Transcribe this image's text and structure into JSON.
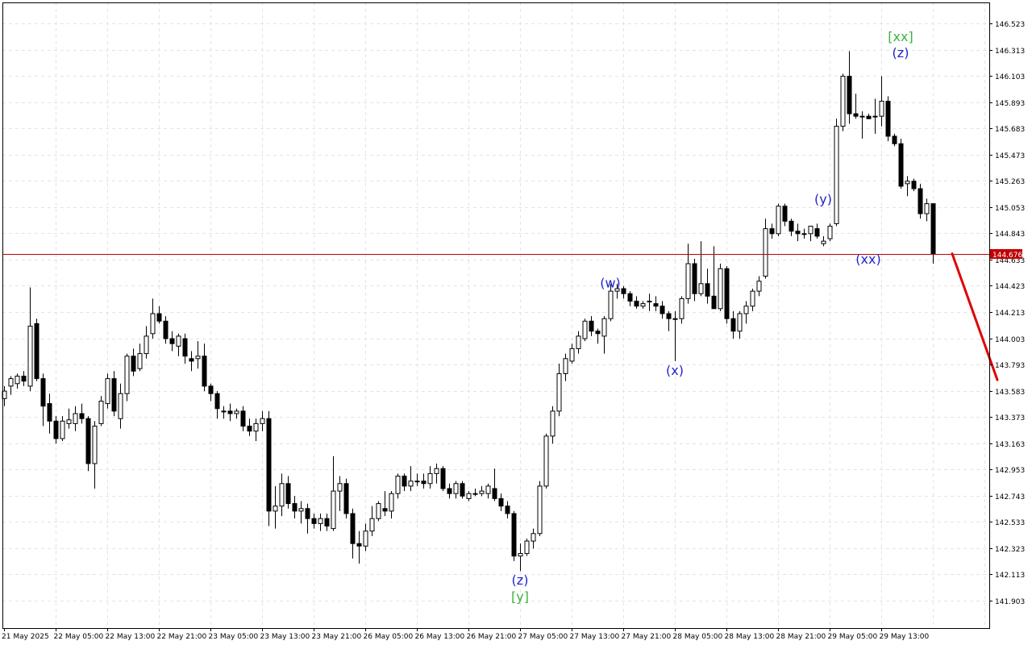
{
  "chart_data": {
    "type": "candlestick",
    "current_price": {
      "value": 144.676,
      "label": "144.676",
      "line_color": "#c00000",
      "badge_color": "#c00000"
    },
    "y_ticks": [
      146.523,
      146.313,
      146.103,
      145.893,
      145.683,
      145.473,
      145.263,
      145.053,
      144.843,
      144.633,
      144.423,
      144.213,
      144.003,
      143.793,
      143.583,
      143.373,
      143.163,
      142.953,
      142.743,
      142.533,
      142.323,
      142.113,
      141.903
    ],
    "y_tick_labels": [
      "146.523",
      "146.313",
      "146.103",
      "145.893",
      "145.683",
      "145.473",
      "145.263",
      "145.053",
      "144.843",
      "144.633",
      "144.423",
      "144.213",
      "144.003",
      "143.793",
      "143.583",
      "143.373",
      "143.163",
      "142.953",
      "142.743",
      "142.533",
      "142.323",
      "142.113",
      "141.903"
    ],
    "x_labels": [
      "21 May 2025",
      "22 May 05:00",
      "22 May 13:00",
      "22 May 21:00",
      "23 May 05:00",
      "23 May 13:00",
      "23 May 21:00",
      "26 May 05:00",
      "26 May 13:00",
      "26 May 21:00",
      "27 May 05:00",
      "27 May 13:00",
      "27 May 21:00",
      "28 May 05:00",
      "28 May 13:00",
      "28 May 21:00",
      "29 May 05:00",
      "29 May 13:00"
    ],
    "bars_per_label": 8,
    "candles": [
      {
        "o": 143.52,
        "h": 143.62,
        "l": 143.46,
        "c": 143.58
      },
      {
        "o": 143.62,
        "h": 143.7,
        "l": 143.55,
        "c": 143.68
      },
      {
        "o": 143.64,
        "h": 143.72,
        "l": 143.6,
        "c": 143.7
      },
      {
        "o": 143.7,
        "h": 143.74,
        "l": 143.62,
        "c": 143.66
      },
      {
        "o": 143.62,
        "h": 144.41,
        "l": 143.58,
        "c": 144.1
      },
      {
        "o": 144.12,
        "h": 144.16,
        "l": 143.66,
        "c": 143.68
      },
      {
        "o": 143.68,
        "h": 143.72,
        "l": 143.3,
        "c": 143.46
      },
      {
        "o": 143.48,
        "h": 143.56,
        "l": 143.24,
        "c": 143.34
      },
      {
        "o": 143.34,
        "h": 143.38,
        "l": 143.16,
        "c": 143.2
      },
      {
        "o": 143.2,
        "h": 143.38,
        "l": 143.18,
        "c": 143.34
      },
      {
        "o": 143.32,
        "h": 143.44,
        "l": 143.28,
        "c": 143.35
      },
      {
        "o": 143.32,
        "h": 143.46,
        "l": 143.26,
        "c": 143.4
      },
      {
        "o": 143.4,
        "h": 143.48,
        "l": 143.32,
        "c": 143.36
      },
      {
        "o": 143.36,
        "h": 143.38,
        "l": 142.94,
        "c": 143.0
      },
      {
        "o": 143.0,
        "h": 143.34,
        "l": 142.8,
        "c": 143.3
      },
      {
        "o": 143.32,
        "h": 143.54,
        "l": 143.3,
        "c": 143.5
      },
      {
        "o": 143.48,
        "h": 143.72,
        "l": 143.44,
        "c": 143.68
      },
      {
        "o": 143.68,
        "h": 143.74,
        "l": 143.38,
        "c": 143.42
      },
      {
        "o": 143.36,
        "h": 143.64,
        "l": 143.28,
        "c": 143.56
      },
      {
        "o": 143.56,
        "h": 143.88,
        "l": 143.5,
        "c": 143.86
      },
      {
        "o": 143.86,
        "h": 143.92,
        "l": 143.7,
        "c": 143.74
      },
      {
        "o": 143.76,
        "h": 143.96,
        "l": 143.74,
        "c": 143.88
      },
      {
        "o": 143.88,
        "h": 144.1,
        "l": 143.84,
        "c": 144.02
      },
      {
        "o": 144.04,
        "h": 144.32,
        "l": 144.0,
        "c": 144.2
      },
      {
        "o": 144.2,
        "h": 144.26,
        "l": 144.12,
        "c": 144.14
      },
      {
        "o": 144.14,
        "h": 144.18,
        "l": 143.96,
        "c": 144.0
      },
      {
        "o": 144.0,
        "h": 144.06,
        "l": 143.9,
        "c": 143.96
      },
      {
        "o": 143.94,
        "h": 144.04,
        "l": 143.86,
        "c": 144.02
      },
      {
        "o": 144.0,
        "h": 144.04,
        "l": 143.8,
        "c": 143.86
      },
      {
        "o": 143.84,
        "h": 143.9,
        "l": 143.74,
        "c": 143.82
      },
      {
        "o": 143.84,
        "h": 143.98,
        "l": 143.76,
        "c": 143.86
      },
      {
        "o": 143.86,
        "h": 143.96,
        "l": 143.58,
        "c": 143.62
      },
      {
        "o": 143.62,
        "h": 143.64,
        "l": 143.5,
        "c": 143.56
      },
      {
        "o": 143.56,
        "h": 143.58,
        "l": 143.36,
        "c": 143.44
      },
      {
        "o": 143.42,
        "h": 143.46,
        "l": 143.36,
        "c": 143.42
      },
      {
        "o": 143.42,
        "h": 143.48,
        "l": 143.34,
        "c": 143.4
      },
      {
        "o": 143.4,
        "h": 143.44,
        "l": 143.36,
        "c": 143.42
      },
      {
        "o": 143.42,
        "h": 143.46,
        "l": 143.26,
        "c": 143.3
      },
      {
        "o": 143.3,
        "h": 143.36,
        "l": 143.22,
        "c": 143.26
      },
      {
        "o": 143.26,
        "h": 143.36,
        "l": 143.18,
        "c": 143.32
      },
      {
        "o": 143.32,
        "h": 143.42,
        "l": 143.26,
        "c": 143.36
      },
      {
        "o": 143.36,
        "h": 143.42,
        "l": 142.5,
        "c": 142.62
      },
      {
        "o": 142.62,
        "h": 142.82,
        "l": 142.48,
        "c": 142.66
      },
      {
        "o": 142.66,
        "h": 142.92,
        "l": 142.58,
        "c": 142.84
      },
      {
        "o": 142.84,
        "h": 142.9,
        "l": 142.64,
        "c": 142.68
      },
      {
        "o": 142.68,
        "h": 142.74,
        "l": 142.56,
        "c": 142.62
      },
      {
        "o": 142.62,
        "h": 142.7,
        "l": 142.52,
        "c": 142.64
      },
      {
        "o": 142.64,
        "h": 142.68,
        "l": 142.44,
        "c": 142.56
      },
      {
        "o": 142.56,
        "h": 142.6,
        "l": 142.48,
        "c": 142.52
      },
      {
        "o": 142.52,
        "h": 142.6,
        "l": 142.46,
        "c": 142.56
      },
      {
        "o": 142.56,
        "h": 142.6,
        "l": 142.46,
        "c": 142.5
      },
      {
        "o": 142.48,
        "h": 143.06,
        "l": 142.46,
        "c": 142.78
      },
      {
        "o": 142.78,
        "h": 142.9,
        "l": 142.62,
        "c": 142.84
      },
      {
        "o": 142.84,
        "h": 142.88,
        "l": 142.56,
        "c": 142.6
      },
      {
        "o": 142.6,
        "h": 142.64,
        "l": 142.24,
        "c": 142.36
      },
      {
        "o": 142.36,
        "h": 142.46,
        "l": 142.2,
        "c": 142.34
      },
      {
        "o": 142.34,
        "h": 142.52,
        "l": 142.3,
        "c": 142.46
      },
      {
        "o": 142.46,
        "h": 142.66,
        "l": 142.42,
        "c": 142.56
      },
      {
        "o": 142.56,
        "h": 142.7,
        "l": 142.54,
        "c": 142.68
      },
      {
        "o": 142.64,
        "h": 142.78,
        "l": 142.58,
        "c": 142.62
      },
      {
        "o": 142.62,
        "h": 142.78,
        "l": 142.56,
        "c": 142.76
      },
      {
        "o": 142.76,
        "h": 142.92,
        "l": 142.72,
        "c": 142.9
      },
      {
        "o": 142.9,
        "h": 142.92,
        "l": 142.78,
        "c": 142.82
      },
      {
        "o": 142.82,
        "h": 142.98,
        "l": 142.78,
        "c": 142.86
      },
      {
        "o": 142.86,
        "h": 142.92,
        "l": 142.82,
        "c": 142.86
      },
      {
        "o": 142.86,
        "h": 142.92,
        "l": 142.8,
        "c": 142.84
      },
      {
        "o": 142.84,
        "h": 142.98,
        "l": 142.8,
        "c": 142.92
      },
      {
        "o": 142.92,
        "h": 143.0,
        "l": 142.84,
        "c": 142.96
      },
      {
        "o": 142.96,
        "h": 142.98,
        "l": 142.78,
        "c": 142.8
      },
      {
        "o": 142.8,
        "h": 142.84,
        "l": 142.72,
        "c": 142.76
      },
      {
        "o": 142.76,
        "h": 142.86,
        "l": 142.72,
        "c": 142.84
      },
      {
        "o": 142.84,
        "h": 142.86,
        "l": 142.72,
        "c": 142.74
      },
      {
        "o": 142.72,
        "h": 142.78,
        "l": 142.7,
        "c": 142.76
      },
      {
        "o": 142.76,
        "h": 142.8,
        "l": 142.74,
        "c": 142.76
      },
      {
        "o": 142.76,
        "h": 142.82,
        "l": 142.74,
        "c": 142.78
      },
      {
        "o": 142.76,
        "h": 142.84,
        "l": 142.72,
        "c": 142.82
      },
      {
        "o": 142.8,
        "h": 142.96,
        "l": 142.7,
        "c": 142.72
      },
      {
        "o": 142.72,
        "h": 142.76,
        "l": 142.62,
        "c": 142.66
      },
      {
        "o": 142.66,
        "h": 142.7,
        "l": 142.56,
        "c": 142.6
      },
      {
        "o": 142.6,
        "h": 142.62,
        "l": 142.22,
        "c": 142.26
      },
      {
        "o": 142.26,
        "h": 142.36,
        "l": 142.14,
        "c": 142.28
      },
      {
        "o": 142.28,
        "h": 142.4,
        "l": 142.26,
        "c": 142.38
      },
      {
        "o": 142.38,
        "h": 142.48,
        "l": 142.32,
        "c": 142.44
      },
      {
        "o": 142.44,
        "h": 142.86,
        "l": 142.42,
        "c": 142.82
      },
      {
        "o": 142.82,
        "h": 143.24,
        "l": 142.8,
        "c": 143.22
      },
      {
        "o": 143.22,
        "h": 143.46,
        "l": 143.16,
        "c": 143.42
      },
      {
        "o": 143.42,
        "h": 143.8,
        "l": 143.38,
        "c": 143.72
      },
      {
        "o": 143.72,
        "h": 143.88,
        "l": 143.66,
        "c": 143.84
      },
      {
        "o": 143.82,
        "h": 143.96,
        "l": 143.8,
        "c": 143.92
      },
      {
        "o": 143.92,
        "h": 144.06,
        "l": 143.88,
        "c": 144.02
      },
      {
        "o": 144.0,
        "h": 144.16,
        "l": 143.98,
        "c": 144.14
      },
      {
        "o": 144.14,
        "h": 144.18,
        "l": 144.02,
        "c": 144.06
      },
      {
        "o": 144.06,
        "h": 144.08,
        "l": 143.96,
        "c": 144.04
      },
      {
        "o": 144.02,
        "h": 144.18,
        "l": 143.88,
        "c": 144.16
      },
      {
        "o": 144.16,
        "h": 144.44,
        "l": 144.14,
        "c": 144.38
      },
      {
        "o": 144.38,
        "h": 144.44,
        "l": 144.32,
        "c": 144.4
      },
      {
        "o": 144.4,
        "h": 144.42,
        "l": 144.32,
        "c": 144.36
      },
      {
        "o": 144.36,
        "h": 144.38,
        "l": 144.26,
        "c": 144.3
      },
      {
        "o": 144.3,
        "h": 144.34,
        "l": 144.24,
        "c": 144.26
      },
      {
        "o": 144.26,
        "h": 144.3,
        "l": 144.24,
        "c": 144.28
      },
      {
        "o": 144.3,
        "h": 144.36,
        "l": 144.22,
        "c": 144.3
      },
      {
        "o": 144.28,
        "h": 144.34,
        "l": 144.22,
        "c": 144.26
      },
      {
        "o": 144.26,
        "h": 144.3,
        "l": 144.16,
        "c": 144.2
      },
      {
        "o": 144.2,
        "h": 144.22,
        "l": 144.06,
        "c": 144.16
      },
      {
        "o": 144.16,
        "h": 144.22,
        "l": 143.82,
        "c": 144.16
      },
      {
        "o": 144.16,
        "h": 144.34,
        "l": 144.12,
        "c": 144.32
      },
      {
        "o": 144.32,
        "h": 144.76,
        "l": 144.28,
        "c": 144.6
      },
      {
        "o": 144.6,
        "h": 144.64,
        "l": 144.3,
        "c": 144.36
      },
      {
        "o": 144.36,
        "h": 144.78,
        "l": 144.34,
        "c": 144.44
      },
      {
        "o": 144.44,
        "h": 144.56,
        "l": 144.28,
        "c": 144.34
      },
      {
        "o": 144.34,
        "h": 144.74,
        "l": 144.24,
        "c": 144.24
      },
      {
        "o": 144.24,
        "h": 144.6,
        "l": 144.22,
        "c": 144.56
      },
      {
        "o": 144.56,
        "h": 144.58,
        "l": 144.12,
        "c": 144.16
      },
      {
        "o": 144.16,
        "h": 144.22,
        "l": 144.0,
        "c": 144.06
      },
      {
        "o": 144.06,
        "h": 144.22,
        "l": 144.0,
        "c": 144.2
      },
      {
        "o": 144.2,
        "h": 144.3,
        "l": 144.12,
        "c": 144.26
      },
      {
        "o": 144.26,
        "h": 144.4,
        "l": 144.22,
        "c": 144.38
      },
      {
        "o": 144.38,
        "h": 144.5,
        "l": 144.34,
        "c": 144.46
      },
      {
        "o": 144.5,
        "h": 144.96,
        "l": 144.48,
        "c": 144.88
      },
      {
        "o": 144.88,
        "h": 144.92,
        "l": 144.8,
        "c": 144.84
      },
      {
        "o": 144.84,
        "h": 145.08,
        "l": 144.82,
        "c": 145.06
      },
      {
        "o": 145.06,
        "h": 145.08,
        "l": 144.9,
        "c": 144.94
      },
      {
        "o": 144.94,
        "h": 144.96,
        "l": 144.82,
        "c": 144.86
      },
      {
        "o": 144.86,
        "h": 144.92,
        "l": 144.78,
        "c": 144.84
      },
      {
        "o": 144.84,
        "h": 144.88,
        "l": 144.8,
        "c": 144.84
      },
      {
        "o": 144.84,
        "h": 144.9,
        "l": 144.78,
        "c": 144.9
      },
      {
        "o": 144.88,
        "h": 144.92,
        "l": 144.8,
        "c": 144.82
      },
      {
        "o": 144.76,
        "h": 144.82,
        "l": 144.74,
        "c": 144.78
      },
      {
        "o": 144.8,
        "h": 144.92,
        "l": 144.78,
        "c": 144.9
      },
      {
        "o": 144.92,
        "h": 145.76,
        "l": 144.9,
        "c": 145.7
      },
      {
        "o": 145.7,
        "h": 146.12,
        "l": 145.66,
        "c": 146.1
      },
      {
        "o": 146.1,
        "h": 146.3,
        "l": 145.72,
        "c": 145.8
      },
      {
        "o": 145.8,
        "h": 145.96,
        "l": 145.76,
        "c": 145.78
      },
      {
        "o": 145.78,
        "h": 145.82,
        "l": 145.6,
        "c": 145.78
      },
      {
        "o": 145.78,
        "h": 145.8,
        "l": 145.76,
        "c": 145.76
      },
      {
        "o": 145.78,
        "h": 145.92,
        "l": 145.64,
        "c": 145.78
      },
      {
        "o": 145.78,
        "h": 146.1,
        "l": 145.7,
        "c": 145.9
      },
      {
        "o": 145.9,
        "h": 145.94,
        "l": 145.58,
        "c": 145.62
      },
      {
        "o": 145.62,
        "h": 145.64,
        "l": 145.54,
        "c": 145.56
      },
      {
        "o": 145.56,
        "h": 145.6,
        "l": 145.2,
        "c": 145.22
      },
      {
        "o": 145.24,
        "h": 145.3,
        "l": 145.14,
        "c": 145.26
      },
      {
        "o": 145.26,
        "h": 145.28,
        "l": 145.18,
        "c": 145.2
      },
      {
        "o": 145.2,
        "h": 145.24,
        "l": 144.96,
        "c": 145.0
      },
      {
        "o": 145.0,
        "h": 145.12,
        "l": 144.94,
        "c": 145.08
      },
      {
        "o": 145.08,
        "h": 145.08,
        "l": 144.6,
        "c": 144.68
      }
    ],
    "wave_labels": [
      {
        "text": "[xx]",
        "candle": 139,
        "price": 146.41,
        "color": "#3cb43c"
      },
      {
        "text": "(z)",
        "candle": 139,
        "price": 146.28,
        "color": "#2323cc"
      },
      {
        "text": "(w)",
        "candle": 94,
        "price": 144.44,
        "color": "#2323cc"
      },
      {
        "text": "(y)",
        "candle": 127,
        "price": 145.11,
        "color": "#2323cc"
      },
      {
        "text": "(xx)",
        "candle": 134,
        "price": 144.63,
        "color": "#2323cc"
      },
      {
        "text": "(x)",
        "candle": 104,
        "price": 143.74,
        "color": "#2323cc"
      },
      {
        "text": "(z)",
        "candle": 80,
        "price": 142.06,
        "color": "#2323cc"
      },
      {
        "text": "[y]",
        "candle": 80,
        "price": 141.93,
        "color": "#3cb43c"
      }
    ],
    "forecast": {
      "color": "#e00000",
      "from": {
        "candle": 147,
        "price": 144.68
      },
      "to": {
        "candle": 154,
        "price": 143.67
      }
    },
    "colors": {
      "bull_body": "#ffffff",
      "bear_body": "#000000",
      "candle_outline": "#000000",
      "grid": "#e4e4e4",
      "axis": "#000000"
    }
  }
}
